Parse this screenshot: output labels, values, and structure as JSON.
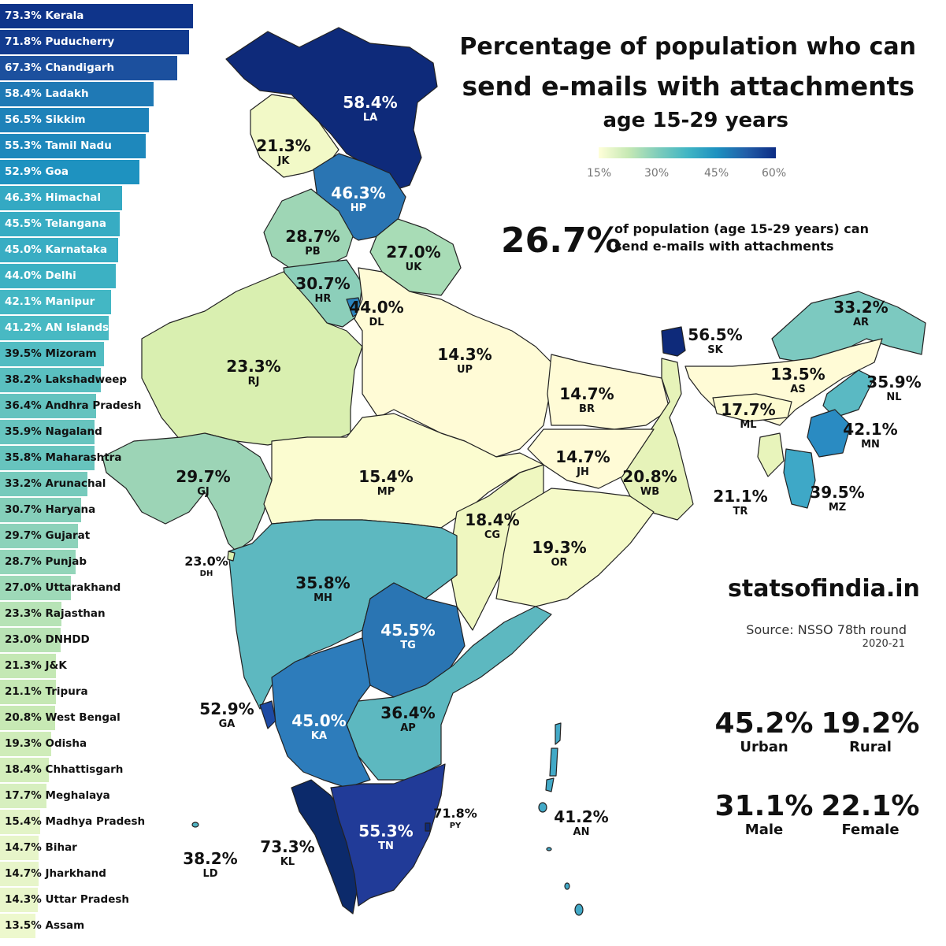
{
  "title_line1": "Percentage of population who can",
  "title_line2": "send e-mails with attachments",
  "subtitle": "age 15-29 years",
  "legend": {
    "ticks": [
      "15%",
      "30%",
      "45%",
      "60%"
    ],
    "colors": [
      "#ffffd9",
      "#c7e9b4",
      "#7fcdbb",
      "#41b6c4",
      "#1d91c0",
      "#225ea8",
      "#0c2c84"
    ]
  },
  "overall": {
    "value": "26.7%",
    "description_line1": "of population (age 15-29 years) can",
    "description_line2": "send e-mails with attachments"
  },
  "brand": "statsofindia.in",
  "source": {
    "text": "Source: NSSO 78th round",
    "year": "2020-21"
  },
  "stats": {
    "urban": {
      "value": "45.2%",
      "label": "Urban"
    },
    "rural": {
      "value": "19.2%",
      "label": "Rural"
    },
    "male": {
      "value": "31.1%",
      "label": "Male"
    },
    "female": {
      "value": "22.1%",
      "label": "Female"
    }
  },
  "chart_data": {
    "type": "bar",
    "categories": [
      "Kerala",
      "Puducherry",
      "Chandigarh",
      "Ladakh",
      "Sikkim",
      "Tamil Nadu",
      "Goa",
      "Himachal",
      "Telangana",
      "Karnataka",
      "Delhi",
      "Manipur",
      "AN Islands",
      "Mizoram",
      "Lakshadweep",
      "Andhra Pradesh",
      "Nagaland",
      "Maharashtra",
      "Arunachal",
      "Haryana",
      "Gujarat",
      "Punjab",
      "Uttarakhand",
      "Rajasthan",
      "DNHDD",
      "J&K",
      "Tripura",
      "West Bengal",
      "Odisha",
      "Chhattisgarh",
      "Meghalaya",
      "Madhya Pradesh",
      "Bihar",
      "Jharkhand",
      "Uttar Pradesh",
      "Assam"
    ],
    "values": [
      73.3,
      71.8,
      67.3,
      58.4,
      56.5,
      55.3,
      52.9,
      46.3,
      45.5,
      45.0,
      44.0,
      42.1,
      41.2,
      39.5,
      38.2,
      36.4,
      35.9,
      35.8,
      33.2,
      30.7,
      29.7,
      28.7,
      27.0,
      23.3,
      23.0,
      21.3,
      21.1,
      20.8,
      19.3,
      18.4,
      17.7,
      15.4,
      14.7,
      14.7,
      14.3,
      13.5
    ],
    "labels": [
      "73.3% Kerala",
      "71.8% Puducherry",
      "67.3% Chandigarh",
      "58.4% Ladakh",
      "56.5% Sikkim",
      "55.3% Tamil Nadu",
      "52.9% Goa",
      "46.3% Himachal",
      "45.5% Telangana",
      "45.0% Karnataka",
      "44.0% Delhi",
      "42.1% Manipur",
      "41.2% AN Islands",
      "39.5% Mizoram",
      "38.2% Lakshadweep",
      "36.4% Andhra Pradesh",
      "35.9% Nagaland",
      "35.8% Maharashtra",
      "33.2% Arunachal",
      "30.7% Haryana",
      "29.7% Gujarat",
      "28.7% Punjab",
      "27.0% Uttarakhand",
      "23.3% Rajasthan",
      "23.0% DNHDD",
      "21.3% J&K",
      "21.1% Tripura",
      "20.8% West Bengal",
      "19.3% Odisha",
      "18.4% Chhattisgarh",
      "17.7% Meghalaya",
      "15.4% Madhya Pradesh",
      "14.7% Bihar",
      "14.7% Jharkhand",
      "14.3% Uttar Pradesh",
      "13.5% Assam"
    ]
  },
  "map_labels": [
    {
      "code": "LA",
      "value": "58.4%",
      "light": true
    },
    {
      "code": "JK",
      "value": "21.3%",
      "light": false
    },
    {
      "code": "HP",
      "value": "46.3%",
      "light": true
    },
    {
      "code": "PB",
      "value": "28.7%",
      "light": false
    },
    {
      "code": "UK",
      "value": "27.0%",
      "light": false
    },
    {
      "code": "HR",
      "value": "30.7%",
      "light": false
    },
    {
      "code": "DL",
      "value": "44.0%",
      "light": false
    },
    {
      "code": "RJ",
      "value": "23.3%",
      "light": false
    },
    {
      "code": "UP",
      "value": "14.3%",
      "light": false
    },
    {
      "code": "BR",
      "value": "14.7%",
      "light": false
    },
    {
      "code": "SK",
      "value": "56.5%",
      "light": false
    },
    {
      "code": "AR",
      "value": "33.2%",
      "light": false
    },
    {
      "code": "AS",
      "value": "13.5%",
      "light": false
    },
    {
      "code": "NL",
      "value": "35.9%",
      "light": false
    },
    {
      "code": "ML",
      "value": "17.7%",
      "light": false
    },
    {
      "code": "MN",
      "value": "42.1%",
      "light": false
    },
    {
      "code": "GJ",
      "value": "29.7%",
      "light": false
    },
    {
      "code": "MP",
      "value": "15.4%",
      "light": false
    },
    {
      "code": "JH",
      "value": "14.7%",
      "light": false
    },
    {
      "code": "WB",
      "value": "20.8%",
      "light": false
    },
    {
      "code": "TR",
      "value": "21.1%",
      "light": false
    },
    {
      "code": "MZ",
      "value": "39.5%",
      "light": false
    },
    {
      "code": "CG",
      "value": "18.4%",
      "light": false
    },
    {
      "code": "OR",
      "value": "19.3%",
      "light": false
    },
    {
      "code": "DH",
      "value": "23.0%",
      "light": false
    },
    {
      "code": "MH",
      "value": "35.8%",
      "light": false
    },
    {
      "code": "TG",
      "value": "45.5%",
      "light": true
    },
    {
      "code": "GA",
      "value": "52.9%",
      "light": false
    },
    {
      "code": "KA",
      "value": "45.0%",
      "light": true
    },
    {
      "code": "AP",
      "value": "36.4%",
      "light": false
    },
    {
      "code": "PY",
      "value": "71.8%",
      "light": false
    },
    {
      "code": "AN",
      "value": "41.2%",
      "light": false
    },
    {
      "code": "TN",
      "value": "55.3%",
      "light": true
    },
    {
      "code": "LD",
      "value": "38.2%",
      "light": false
    },
    {
      "code": "KL",
      "value": "73.3%",
      "light": false
    }
  ]
}
